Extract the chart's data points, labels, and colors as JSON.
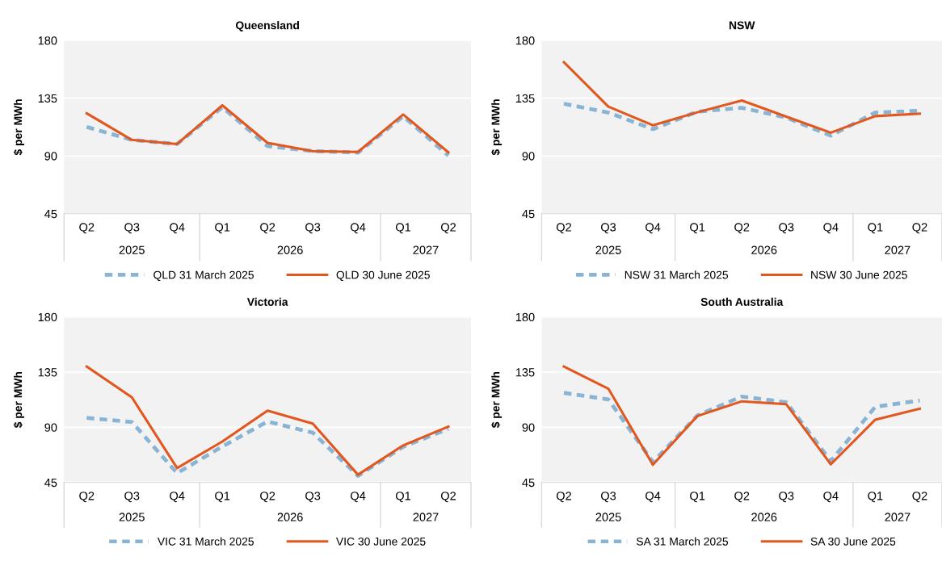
{
  "chart_data": [
    {
      "type": "line",
      "title": "Queensland",
      "ylabel": "$ per MWh",
      "categories": [
        "Q2",
        "Q3",
        "Q4",
        "Q1",
        "Q2",
        "Q3",
        "Q4",
        "Q1",
        "Q2"
      ],
      "annotations": [
        "2025",
        "2026",
        "2027"
      ],
      "ylim": [
        45,
        180
      ],
      "yticks": [
        45,
        90,
        135,
        180
      ],
      "grid": "y",
      "legend": "bottom",
      "series": [
        {
          "name": "QLD 31 March 2025",
          "color": "#8ab4d4",
          "line_style": "dashed",
          "values": [
            112.6,
            102.5,
            99.3,
            128,
            97.7,
            93.8,
            92.6,
            120.9,
            90.3
          ]
        },
        {
          "name": "QLD 30 June 2025",
          "color": "#e2571e",
          "line_style": "solid",
          "values": [
            123.2,
            102.5,
            99.3,
            129.4,
            100.2,
            93.8,
            93.1,
            122.3,
            92.8
          ]
        }
      ]
    },
    {
      "type": "line",
      "title": "NSW",
      "ylabel": "$ per MWh",
      "categories": [
        "Q2",
        "Q3",
        "Q4",
        "Q1",
        "Q2",
        "Q3",
        "Q4",
        "Q1",
        "Q2"
      ],
      "annotations": [
        "2025",
        "2026",
        "2027"
      ],
      "ylim": [
        45,
        180
      ],
      "yticks": [
        45,
        90,
        135,
        180
      ],
      "grid": "y",
      "legend": "bottom",
      "series": [
        {
          "name": "NSW 31 March 2025",
          "color": "#8ab4d4",
          "line_style": "dashed",
          "values": [
            130.7,
            123.8,
            110.9,
            124.5,
            127.5,
            119.9,
            105.8,
            123.8,
            125.2
          ]
        },
        {
          "name": "NSW 30 June 2025",
          "color": "#e2571e",
          "line_style": "solid",
          "values": [
            163,
            128.4,
            113.9,
            124,
            133.2,
            120.6,
            108.1,
            121,
            122.9
          ]
        }
      ]
    },
    {
      "type": "line",
      "title": "Victoria",
      "ylabel": "$ per MWh",
      "categories": [
        "Q2",
        "Q3",
        "Q4",
        "Q1",
        "Q2",
        "Q3",
        "Q4",
        "Q1",
        "Q2"
      ],
      "annotations": [
        "2025",
        "2026",
        "2027"
      ],
      "ylim": [
        45,
        180
      ],
      "yticks": [
        45,
        90,
        135,
        180
      ],
      "grid": "y",
      "legend": "bottom",
      "series": [
        {
          "name": "VIC 31 March 2025",
          "color": "#8ab4d4",
          "line_style": "dashed",
          "values": [
            97.7,
            94.3,
            52.6,
            74.3,
            94.7,
            85.6,
            50.4,
            74.1,
            88.8
          ]
        },
        {
          "name": "VIC 30 June 2025",
          "color": "#e2571e",
          "line_style": "solid",
          "values": [
            139.6,
            114.4,
            56.7,
            78.4,
            103.6,
            93,
            51.3,
            75.2,
            90.6
          ]
        }
      ]
    },
    {
      "type": "line",
      "title": "South Australia",
      "ylabel": "$ per MWh",
      "categories": [
        "Q2",
        "Q3",
        "Q4",
        "Q1",
        "Q2",
        "Q3",
        "Q4",
        "Q1",
        "Q2"
      ],
      "annotations": [
        "2025",
        "2026",
        "2027"
      ],
      "ylim": [
        45,
        180
      ],
      "yticks": [
        45,
        90,
        135,
        180
      ],
      "grid": "y",
      "legend": "bottom",
      "series": [
        {
          "name": "SA 31 March 2025",
          "color": "#8ab4d4",
          "line_style": "dashed",
          "values": [
            118.1,
            112.7,
            61.6,
            99.6,
            115.1,
            110.4,
            62.4,
            106.7,
            111.9
          ]
        },
        {
          "name": "SA 30 June 2025",
          "color": "#e2571e",
          "line_style": "solid",
          "values": [
            139.6,
            121.5,
            59.4,
            99.2,
            111.2,
            108.8,
            59.8,
            96.2,
            105.2
          ]
        }
      ]
    }
  ]
}
